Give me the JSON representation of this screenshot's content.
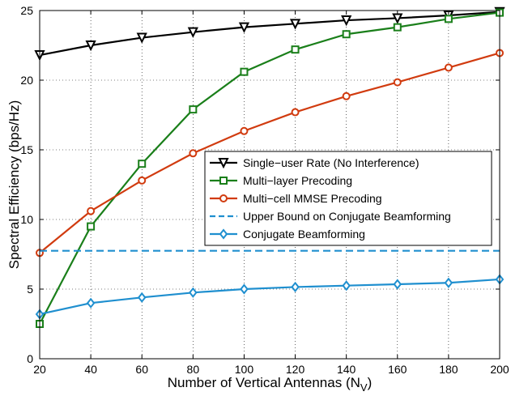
{
  "chart_data": {
    "type": "line",
    "title": "",
    "xlabel": "Number of Vertical Antennas (N",
    "xlabel_sub": "V",
    "xlabel_close": ")",
    "ylabel": "Spectral Efficiency (bps/Hz)",
    "xlim": [
      20,
      200
    ],
    "ylim": [
      0,
      25
    ],
    "x_ticks": [
      20,
      40,
      60,
      80,
      100,
      120,
      140,
      160,
      180,
      200
    ],
    "y_ticks": [
      0,
      5,
      10,
      15,
      20,
      25
    ],
    "grid": true,
    "legend_position": "center-right",
    "x": [
      20,
      40,
      60,
      80,
      100,
      120,
      140,
      160,
      180,
      200
    ],
    "series": [
      {
        "name": "Single−user Rate (No Interference)",
        "color": "#000000",
        "marker": "triangle-down",
        "values": [
          21.8,
          22.5,
          23.05,
          23.45,
          23.8,
          24.05,
          24.3,
          24.45,
          24.65,
          24.9
        ]
      },
      {
        "name": "Multi−layer Precoding",
        "color": "#1a7f1a",
        "marker": "square",
        "values": [
          2.5,
          9.5,
          14.0,
          17.9,
          20.6,
          22.2,
          23.3,
          23.8,
          24.4,
          24.85
        ]
      },
      {
        "name": "Multi−cell MMSE Precoding",
        "color": "#d13b0f",
        "marker": "circle",
        "values": [
          7.6,
          10.6,
          12.8,
          14.75,
          16.35,
          17.7,
          18.85,
          19.85,
          20.9,
          21.95
        ]
      },
      {
        "name": "Upper Bound on Conjugate Beamforming",
        "color": "#1f8fcf",
        "marker": "none",
        "dashed": true,
        "values": [
          7.75,
          7.75,
          7.75,
          7.75,
          7.75,
          7.75,
          7.75,
          7.75,
          7.75,
          7.75
        ]
      },
      {
        "name": "Conjugate Beamforming",
        "color": "#1f8fcf",
        "marker": "diamond",
        "values": [
          3.2,
          4.0,
          4.4,
          4.75,
          5.0,
          5.15,
          5.25,
          5.35,
          5.45,
          5.7
        ]
      }
    ]
  }
}
